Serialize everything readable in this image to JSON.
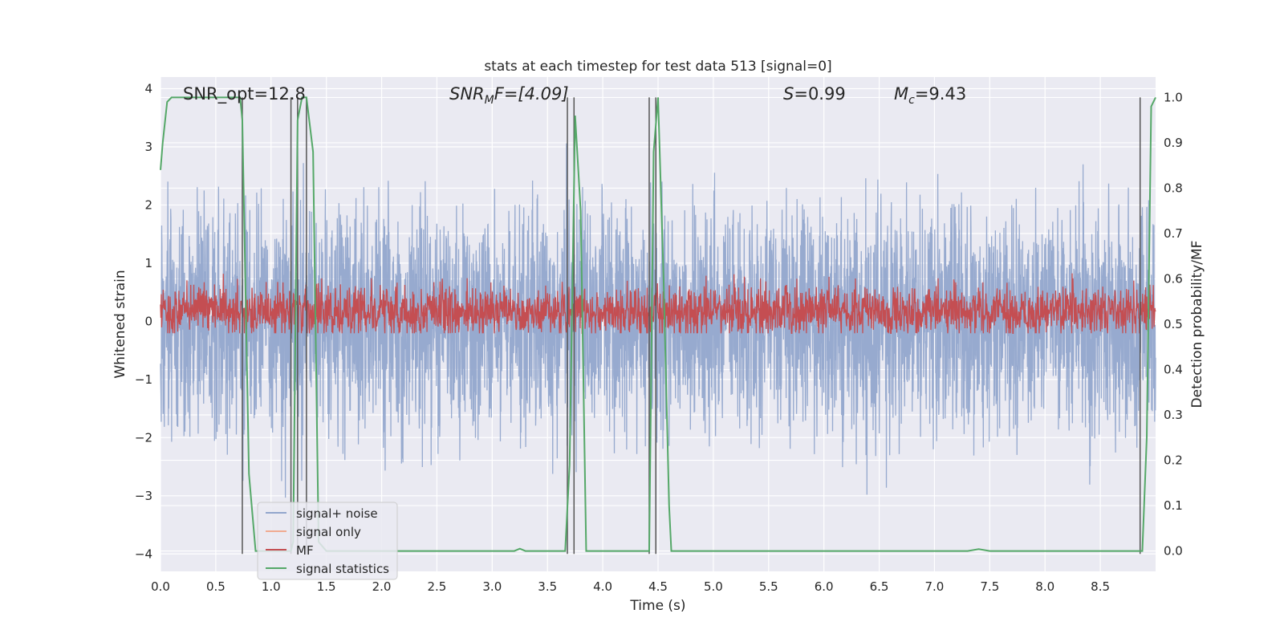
{
  "chart_data": {
    "type": "line",
    "title": "stats at each timestep for test data 513 [signal=0]",
    "xlabel": "Time (s)",
    "ylabel": "Whitened strain",
    "y2label": "Detection probability/MF",
    "xlim": [
      0,
      9.0
    ],
    "ylim": [
      -4.3,
      4.2
    ],
    "y2lim": [
      -0.045,
      1.045
    ],
    "xticks": [
      0.0,
      0.5,
      1.0,
      1.5,
      2.0,
      2.5,
      3.0,
      3.5,
      4.0,
      4.5,
      5.0,
      5.5,
      6.0,
      6.5,
      7.0,
      7.5,
      8.0,
      8.5
    ],
    "xtick_labels": [
      "0.0",
      "0.5",
      "1.0",
      "1.5",
      "2.0",
      "2.5",
      "3.0",
      "3.5",
      "4.0",
      "4.5",
      "5.0",
      "5.5",
      "6.0",
      "6.5",
      "7.0",
      "7.5",
      "8.0",
      "8.5"
    ],
    "yticks": [
      4,
      3,
      2,
      1,
      0,
      -1,
      -2,
      -3,
      -4
    ],
    "ytick_labels": [
      "4",
      "3",
      "2",
      "1",
      "0",
      "−1",
      "−2",
      "−3",
      "−4"
    ],
    "y2ticks": [
      1.0,
      0.9,
      0.8,
      0.7,
      0.6,
      0.5,
      0.4,
      0.3,
      0.2,
      0.1,
      0.0
    ],
    "y2tick_labels": [
      "1.0",
      "0.9",
      "0.8",
      "0.7",
      "0.6",
      "0.5",
      "0.4",
      "0.3",
      "0.2",
      "0.1",
      "0.0"
    ],
    "grid": true,
    "legend_position": "lower-left",
    "annotations": {
      "snr_opt": "SNR_opt=12.8",
      "snr_mf_base": "SNR",
      "snr_mf_sub": "M",
      "snr_mf_rest": "F=[4.09]",
      "s_italic": "S",
      "s_value": "=0.99",
      "mc_base": "M",
      "mc_sub": "c",
      "mc_value": "=9.43"
    },
    "series": [
      {
        "name": "signal+ noise",
        "color": "#92a6cc",
        "axis": "left",
        "amplitude_envelope": [
          -3.5,
          3.4
        ]
      },
      {
        "name": "signal only",
        "color": "#f0ab91",
        "axis": "left"
      },
      {
        "name": "MF",
        "color": "#c44e52",
        "axis": "right",
        "level": 0.53,
        "amplitude_envelope": [
          0.48,
          0.63
        ]
      },
      {
        "name": "signal statistics",
        "color": "#55a868",
        "axis": "right",
        "x": [
          0.0,
          0.02,
          0.06,
          0.1,
          0.15,
          0.6,
          0.72,
          0.74,
          0.8,
          0.86,
          1.1,
          1.18,
          1.2,
          1.24,
          1.28,
          1.32,
          1.38,
          1.43,
          1.5,
          3.2,
          3.25,
          3.3,
          3.6,
          3.66,
          3.7,
          3.75,
          3.8,
          3.85,
          3.9,
          4.35,
          4.42,
          4.46,
          4.5,
          4.55,
          4.6,
          4.62,
          7.3,
          7.4,
          7.5,
          8.85,
          8.88,
          8.92,
          8.96,
          9.0
        ],
        "y": [
          0.84,
          0.9,
          0.99,
          1.0,
          1.0,
          1.0,
          1.0,
          0.95,
          0.17,
          0.0,
          0.0,
          0.0,
          0.02,
          0.95,
          1.0,
          1.0,
          0.88,
          0.02,
          0.0,
          0.0,
          0.005,
          0.0,
          0.0,
          0.0,
          0.19,
          0.96,
          0.75,
          0.0,
          0.0,
          0.0,
          0.0,
          0.88,
          1.0,
          0.6,
          0.1,
          0.0,
          0.0,
          0.004,
          0.0,
          0.0,
          0.0,
          0.25,
          0.98,
          1.0
        ]
      }
    ],
    "vertical_markers_s": [
      0.74,
      1.18,
      1.24,
      1.32,
      3.68,
      3.74,
      4.42,
      4.48,
      8.86
    ]
  }
}
